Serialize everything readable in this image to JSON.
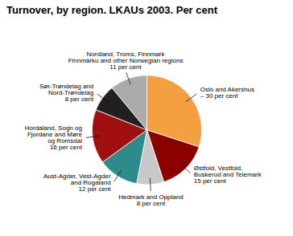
{
  "chart_data": {
    "type": "pie",
    "title": "Turnover, by region. LKAUs 2003. Per cent",
    "categories": [
      "Oslo and Akershus\n– 30 per cent",
      "Østfold, Vestfold,\nBuskerud and Telemark\n15 per cent",
      "Hedmark and Oppland\n8 per cent",
      "Aust-Agder, Vest-Agder\nand Rogaland\n12 per cent",
      "Hordaland, Sogn og\nFjordane and Møre\nog Romsdal\n16 per cent",
      "Sør-Trøndelag and\nNord-Trøndelag\n8 per cent",
      "Nordland, Troms, Finnmark\nFinnmárku and other Norwegian regions\n11 per cent"
    ],
    "values": [
      30,
      15,
      8,
      12,
      16,
      8,
      11
    ],
    "colors": [
      "#F5A040",
      "#8B0000",
      "#C8C8C8",
      "#2E8B8B",
      "#A01010",
      "#202020",
      "#ABABAB"
    ]
  }
}
